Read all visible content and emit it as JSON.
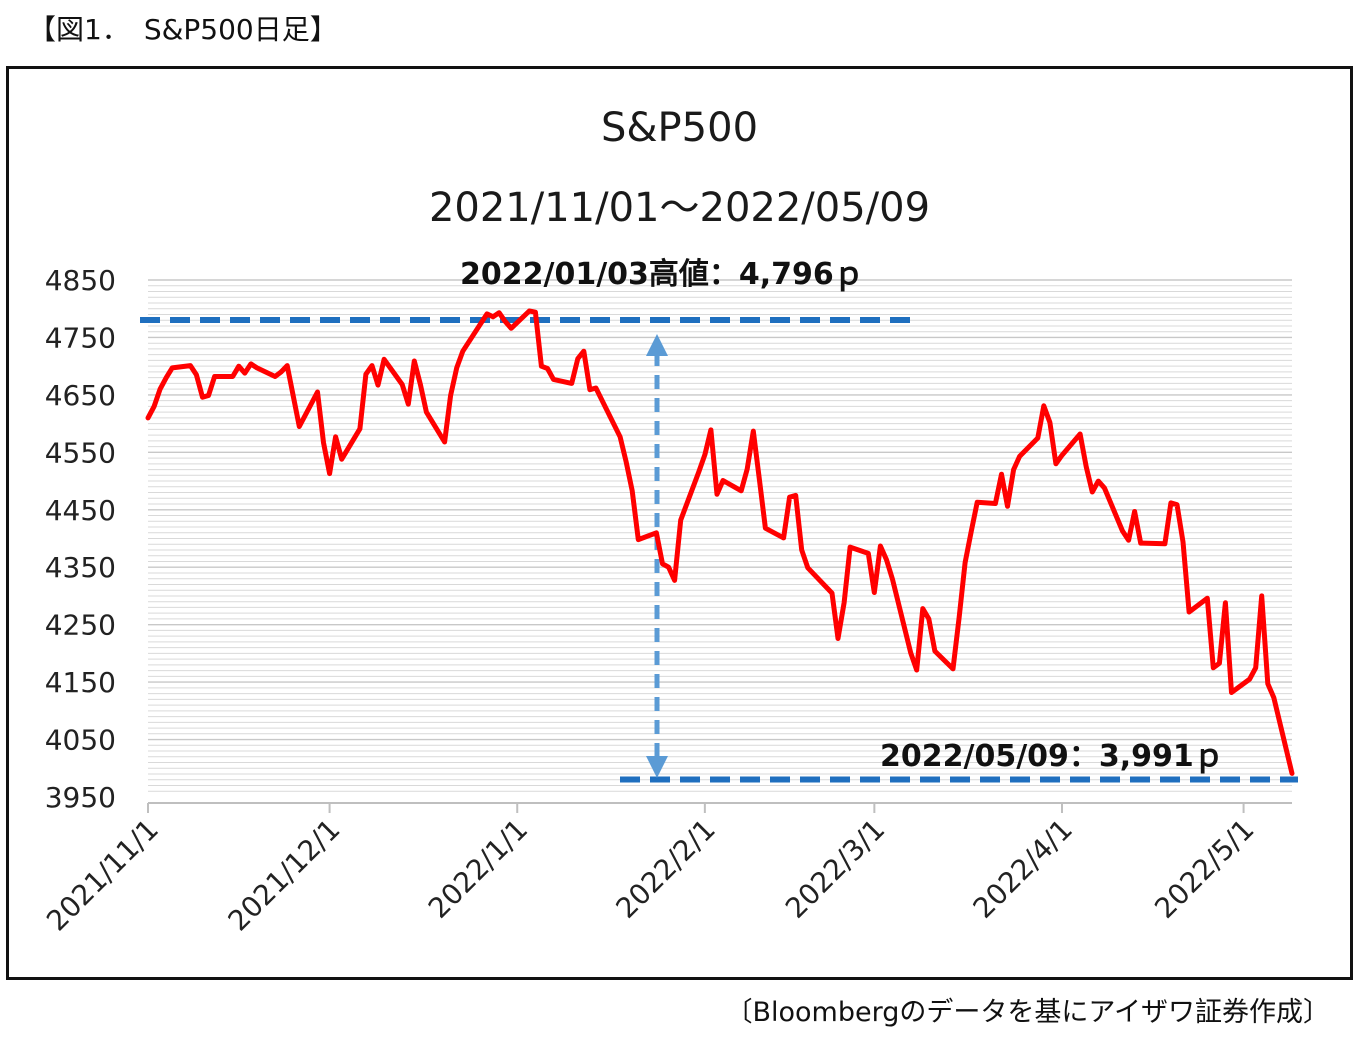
{
  "figure_label": "【図1．　S&P500日足】",
  "source_note": "〔Bloombergのデータを基にアイザワ証券作成〕",
  "colors": {
    "line": "#ff0000",
    "ref_line": "#1f6fbf",
    "arrow": "#5b9bd5",
    "grid": "#d9d9d9",
    "axis": "#bfbfbf"
  },
  "chart_data": {
    "type": "line",
    "title": "S&P500",
    "subtitle": "2021/11/01～2022/05/09",
    "xlabel": "",
    "ylabel": "",
    "ylim": [
      3950,
      4850
    ],
    "yticks": [
      3950,
      4050,
      4150,
      4250,
      4350,
      4450,
      4550,
      4650,
      4750,
      4850
    ],
    "xlim": [
      "2021-11-01",
      "2022-05-09"
    ],
    "xticks": [
      {
        "date": "2021-11-01",
        "label": "2021/11/1"
      },
      {
        "date": "2021-12-01",
        "label": "2021/12/1"
      },
      {
        "date": "2022-01-01",
        "label": "2022/1/1"
      },
      {
        "date": "2022-02-01",
        "label": "2022/2/1"
      },
      {
        "date": "2022-03-01",
        "label": "2022/3/1"
      },
      {
        "date": "2022-04-01",
        "label": "2022/4/1"
      },
      {
        "date": "2022-05-01",
        "label": "2022/5/1"
      }
    ],
    "grid": true,
    "series": [
      {
        "color": "#ff0000",
        "points": [
          [
            "2021-11-01",
            4610
          ],
          [
            "2021-11-02",
            4630
          ],
          [
            "2021-11-03",
            4660
          ],
          [
            "2021-11-04",
            4680
          ],
          [
            "2021-11-05",
            4697
          ],
          [
            "2021-11-08",
            4701
          ],
          [
            "2021-11-09",
            4685
          ],
          [
            "2021-11-10",
            4646
          ],
          [
            "2021-11-11",
            4649
          ],
          [
            "2021-11-12",
            4682
          ],
          [
            "2021-11-15",
            4682
          ],
          [
            "2021-11-16",
            4700
          ],
          [
            "2021-11-17",
            4688
          ],
          [
            "2021-11-18",
            4704
          ],
          [
            "2021-11-19",
            4697
          ],
          [
            "2021-11-22",
            4682
          ],
          [
            "2021-11-23",
            4690
          ],
          [
            "2021-11-24",
            4701
          ],
          [
            "2021-11-26",
            4595
          ],
          [
            "2021-11-29",
            4655
          ],
          [
            "2021-11-30",
            4567
          ],
          [
            "2021-12-01",
            4513
          ],
          [
            "2021-12-02",
            4577
          ],
          [
            "2021-12-03",
            4538
          ],
          [
            "2021-12-06",
            4591
          ],
          [
            "2021-12-07",
            4686
          ],
          [
            "2021-12-08",
            4701
          ],
          [
            "2021-12-09",
            4667
          ],
          [
            "2021-12-10",
            4712
          ],
          [
            "2021-12-13",
            4668
          ],
          [
            "2021-12-14",
            4634
          ],
          [
            "2021-12-15",
            4709
          ],
          [
            "2021-12-16",
            4668
          ],
          [
            "2021-12-17",
            4620
          ],
          [
            "2021-12-20",
            4568
          ],
          [
            "2021-12-21",
            4649
          ],
          [
            "2021-12-22",
            4697
          ],
          [
            "2021-12-23",
            4726
          ],
          [
            "2021-12-27",
            4791
          ],
          [
            "2021-12-28",
            4786
          ],
          [
            "2021-12-29",
            4793
          ],
          [
            "2021-12-30",
            4778
          ],
          [
            "2021-12-31",
            4766
          ],
          [
            "2022-01-03",
            4796
          ],
          [
            "2022-01-04",
            4794
          ],
          [
            "2022-01-05",
            4700
          ],
          [
            "2022-01-06",
            4696
          ],
          [
            "2022-01-07",
            4677
          ],
          [
            "2022-01-10",
            4670
          ],
          [
            "2022-01-11",
            4713
          ],
          [
            "2022-01-12",
            4726
          ],
          [
            "2022-01-13",
            4659
          ],
          [
            "2022-01-14",
            4662
          ],
          [
            "2022-01-18",
            4577
          ],
          [
            "2022-01-19",
            4533
          ],
          [
            "2022-01-20",
            4483
          ],
          [
            "2022-01-21",
            4398
          ],
          [
            "2022-01-24",
            4410
          ],
          [
            "2022-01-25",
            4356
          ],
          [
            "2022-01-26",
            4350
          ],
          [
            "2022-01-27",
            4327
          ],
          [
            "2022-01-28",
            4432
          ],
          [
            "2022-01-31",
            4516
          ],
          [
            "2022-02-01",
            4546
          ],
          [
            "2022-02-02",
            4589
          ],
          [
            "2022-02-03",
            4477
          ],
          [
            "2022-02-04",
            4501
          ],
          [
            "2022-02-07",
            4483
          ],
          [
            "2022-02-08",
            4521
          ],
          [
            "2022-02-09",
            4587
          ],
          [
            "2022-02-10",
            4504
          ],
          [
            "2022-02-11",
            4418
          ],
          [
            "2022-02-14",
            4401
          ],
          [
            "2022-02-15",
            4472
          ],
          [
            "2022-02-16",
            4475
          ],
          [
            "2022-02-17",
            4380
          ],
          [
            "2022-02-18",
            4349
          ],
          [
            "2022-02-22",
            4305
          ],
          [
            "2022-02-23",
            4226
          ],
          [
            "2022-02-24",
            4288
          ],
          [
            "2022-02-25",
            4385
          ],
          [
            "2022-02-28",
            4374
          ],
          [
            "2022-03-01",
            4306
          ],
          [
            "2022-03-02",
            4387
          ],
          [
            "2022-03-03",
            4363
          ],
          [
            "2022-03-04",
            4329
          ],
          [
            "2022-03-07",
            4201
          ],
          [
            "2022-03-08",
            4171
          ],
          [
            "2022-03-09",
            4278
          ],
          [
            "2022-03-10",
            4260
          ],
          [
            "2022-03-11",
            4204
          ],
          [
            "2022-03-14",
            4173
          ],
          [
            "2022-03-15",
            4262
          ],
          [
            "2022-03-16",
            4358
          ],
          [
            "2022-03-17",
            4412
          ],
          [
            "2022-03-18",
            4463
          ],
          [
            "2022-03-21",
            4461
          ],
          [
            "2022-03-22",
            4512
          ],
          [
            "2022-03-23",
            4456
          ],
          [
            "2022-03-24",
            4520
          ],
          [
            "2022-03-25",
            4543
          ],
          [
            "2022-03-28",
            4575
          ],
          [
            "2022-03-29",
            4631
          ],
          [
            "2022-03-30",
            4602
          ],
          [
            "2022-03-31",
            4530
          ],
          [
            "2022-04-01",
            4545
          ],
          [
            "2022-04-04",
            4582
          ],
          [
            "2022-04-05",
            4525
          ],
          [
            "2022-04-06",
            4481
          ],
          [
            "2022-04-07",
            4500
          ],
          [
            "2022-04-08",
            4488
          ],
          [
            "2022-04-11",
            4413
          ],
          [
            "2022-04-12",
            4397
          ],
          [
            "2022-04-13",
            4447
          ],
          [
            "2022-04-14",
            4392
          ],
          [
            "2022-04-18",
            4391
          ],
          [
            "2022-04-19",
            4462
          ],
          [
            "2022-04-20",
            4459
          ],
          [
            "2022-04-21",
            4394
          ],
          [
            "2022-04-22",
            4272
          ],
          [
            "2022-04-25",
            4296
          ],
          [
            "2022-04-26",
            4175
          ],
          [
            "2022-04-27",
            4183
          ],
          [
            "2022-04-28",
            4288
          ],
          [
            "2022-04-29",
            4132
          ],
          [
            "2022-05-02",
            4155
          ],
          [
            "2022-05-03",
            4175
          ],
          [
            "2022-05-04",
            4300
          ],
          [
            "2022-05-05",
            4147
          ],
          [
            "2022-05-06",
            4123
          ],
          [
            "2022-05-09",
            3991
          ]
        ]
      }
    ],
    "annotations": {
      "high_label": "2022/01/03高値：4,796ｐ",
      "high_value": 4796,
      "low_label": "2022/05/09：3,991ｐ",
      "low_value": 3991
    }
  }
}
